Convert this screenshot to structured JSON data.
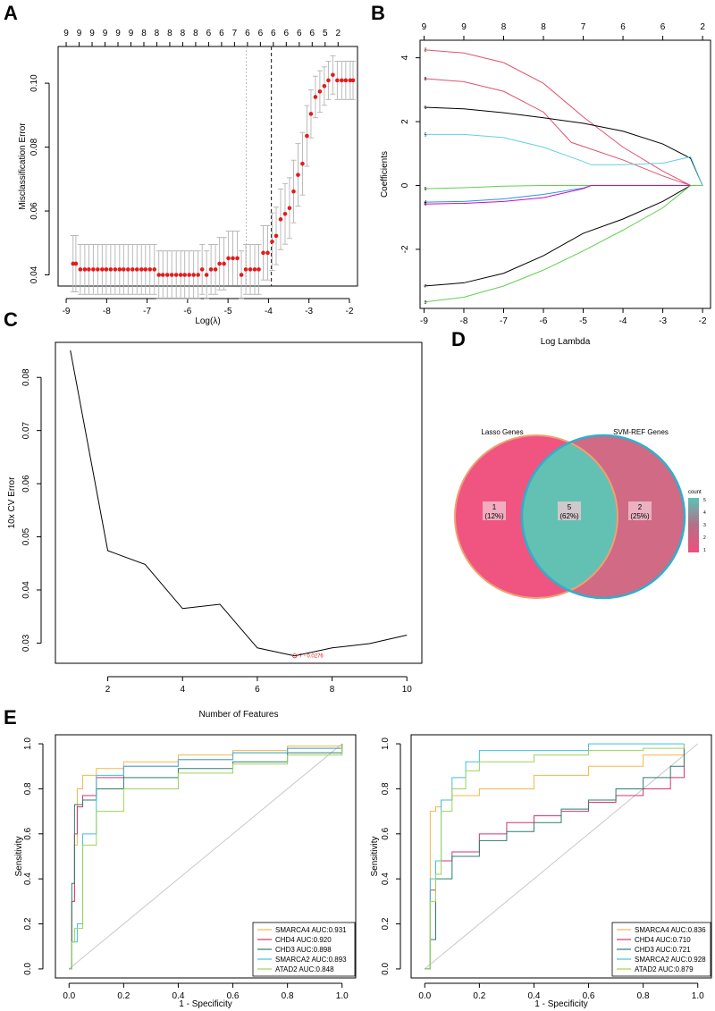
{
  "panels": {
    "a": "A",
    "b": "B",
    "c": "C",
    "d": "D",
    "e": "E"
  },
  "chart_data": [
    {
      "id": "A",
      "type": "scatter",
      "xlabel": "Log(λ)",
      "ylabel": "Misclassification Error",
      "xlim": [
        -9.2,
        -1.8
      ],
      "ylim": [
        0.0365,
        0.1115
      ],
      "xticks": [
        -9,
        -8,
        -7,
        -6,
        -5,
        -4,
        -3,
        -2
      ],
      "yticks": [
        0.04,
        0.06,
        0.08,
        0.1
      ],
      "top_ticks_x": [
        -9,
        -8.68,
        -8.36,
        -8.04,
        -7.72,
        -7.4,
        -7.08,
        -6.76,
        -6.44,
        -6.12,
        -5.8,
        -5.48,
        -5.16,
        -4.84,
        -4.52,
        -4.2,
        -3.88,
        -3.56,
        -3.24,
        -2.92,
        -2.6,
        -2.28
      ],
      "top_ticks": [
        "9",
        "9",
        "9",
        "9",
        "9",
        "9",
        "8",
        "8",
        "8",
        "8",
        "8",
        "6",
        "6",
        "7",
        "6",
        "6",
        "6",
        "6",
        "6",
        "6",
        "5",
        "2"
      ],
      "vlines": [
        -4.55,
        -3.93
      ],
      "x": [
        -8.83,
        -8.76,
        -8.65,
        -8.54,
        -8.44,
        -8.33,
        -8.22,
        -8.11,
        -8.01,
        -7.9,
        -7.79,
        -7.68,
        -7.58,
        -7.47,
        -7.36,
        -7.25,
        -7.14,
        -7.04,
        -6.93,
        -6.82,
        -6.71,
        -6.61,
        -6.5,
        -6.39,
        -6.28,
        -6.17,
        -6.07,
        -5.96,
        -5.85,
        -5.74,
        -5.64,
        -5.53,
        -5.42,
        -5.31,
        -5.21,
        -5.1,
        -4.99,
        -4.88,
        -4.77,
        -4.67,
        -4.56,
        -4.45,
        -4.34,
        -4.24,
        -4.13,
        -4.02,
        -3.91,
        -3.81,
        -3.7,
        -3.59,
        -3.48,
        -3.38,
        -3.27,
        -3.16,
        -3.05,
        -2.95,
        -2.84,
        -2.73,
        -2.62,
        -2.52,
        -2.41,
        -2.3,
        -2.19,
        -2.09,
        -1.98,
        -1.91
      ],
      "y": [
        0.0435,
        0.0435,
        0.0417,
        0.0417,
        0.0417,
        0.0417,
        0.0417,
        0.0417,
        0.0417,
        0.0417,
        0.0417,
        0.0417,
        0.0417,
        0.0417,
        0.0417,
        0.0417,
        0.0417,
        0.0417,
        0.0417,
        0.0417,
        0.04,
        0.04,
        0.04,
        0.04,
        0.04,
        0.04,
        0.04,
        0.04,
        0.04,
        0.04,
        0.0417,
        0.04,
        0.0417,
        0.0417,
        0.0435,
        0.0435,
        0.0452,
        0.0452,
        0.0452,
        0.04,
        0.0417,
        0.0417,
        0.0417,
        0.0417,
        0.0469,
        0.0469,
        0.0504,
        0.0522,
        0.0574,
        0.0591,
        0.0609,
        0.0661,
        0.0713,
        0.0748,
        0.0835,
        0.0904,
        0.0957,
        0.0974,
        0.0991,
        0.1009,
        0.1026,
        0.1009,
        0.1009,
        0.1009,
        0.1009,
        0.1009
      ],
      "err": [
        0.0088,
        0.0088,
        0.0078,
        0.0078,
        0.0078,
        0.0078,
        0.0078,
        0.0078,
        0.0078,
        0.0078,
        0.0078,
        0.0078,
        0.0078,
        0.0078,
        0.0078,
        0.0078,
        0.0078,
        0.0078,
        0.0078,
        0.0078,
        0.0075,
        0.0075,
        0.0075,
        0.0075,
        0.0075,
        0.0075,
        0.0075,
        0.0075,
        0.0075,
        0.0075,
        0.0078,
        0.0075,
        0.0078,
        0.0078,
        0.0082,
        0.0082,
        0.0085,
        0.0085,
        0.0085,
        0.0075,
        0.0078,
        0.0078,
        0.0078,
        0.0078,
        0.0085,
        0.0085,
        0.009,
        0.009,
        0.0095,
        0.0095,
        0.0095,
        0.0098,
        0.0098,
        0.0098,
        0.0095,
        0.0075,
        0.0065,
        0.0065,
        0.006,
        0.006,
        0.006,
        0.006,
        0.006,
        0.006,
        0.006,
        0.006
      ],
      "colors": {
        "point": "#e41a1c",
        "error_bar": "#b3b3b3"
      }
    },
    {
      "id": "B",
      "type": "line",
      "xlabel": "Log Lambda",
      "ylabel": "Coefficients",
      "xlim": [
        -9.1,
        -1.8
      ],
      "ylim": [
        -3.85,
        4.55
      ],
      "xticks": [
        -9,
        -8,
        -7,
        -6,
        -5,
        -4,
        -3,
        -2
      ],
      "yticks": [
        -2,
        0,
        2,
        4
      ],
      "top_ticks_x": [
        -9,
        -8,
        -7,
        -6,
        -5,
        -4,
        -3,
        -2
      ],
      "top_ticks": [
        "9",
        "9",
        "8",
        "8",
        "7",
        "6",
        "6",
        "2"
      ],
      "series": [
        {
          "label": "2",
          "color": "#df536b",
          "x": [
            -9,
            -8,
            -7,
            -6,
            -5,
            -4,
            -3,
            -2.3,
            -2.0
          ],
          "y": [
            4.25,
            4.15,
            3.85,
            3.2,
            2.15,
            1.2,
            0.45,
            0.0,
            0.0
          ]
        },
        {
          "label": "8",
          "color": "#df536b",
          "x": [
            -9,
            -8,
            -7,
            -6,
            -5.3,
            -4,
            -3,
            -2.3,
            -2.0
          ],
          "y": [
            3.35,
            3.25,
            2.95,
            2.3,
            1.35,
            0.8,
            0.3,
            0.0,
            0.0
          ]
        },
        {
          "label": "1",
          "color": "#000000",
          "x": [
            -9,
            -8,
            -7,
            -6,
            -5,
            -4,
            -3,
            -2.3,
            -2.0
          ],
          "y": [
            2.45,
            2.4,
            2.28,
            2.12,
            1.95,
            1.7,
            1.3,
            0.85,
            0.0
          ]
        },
        {
          "label": "5",
          "color": "#61d0e5",
          "x": [
            -9,
            -8,
            -7,
            -6,
            -5,
            -4.8,
            -4,
            -3,
            -2.3,
            -2.0
          ],
          "y": [
            1.6,
            1.6,
            1.5,
            1.2,
            0.75,
            0.65,
            0.65,
            0.7,
            0.9,
            0.0
          ]
        },
        {
          "label": "9",
          "color": "#61d04f",
          "x": [
            -9,
            -8,
            -7,
            -6,
            -5,
            -4,
            -3,
            -2.3,
            -2.0
          ],
          "y": [
            -0.1,
            -0.07,
            -0.02,
            0,
            0,
            0,
            0,
            0,
            0
          ]
        },
        {
          "label": "4",
          "color": "#2297e6",
          "x": [
            -9,
            -8,
            -7,
            -6,
            -5,
            -4.8,
            -4,
            -3,
            -2
          ],
          "y": [
            -0.52,
            -0.5,
            -0.42,
            -0.28,
            -0.08,
            0,
            0,
            0,
            0
          ]
        },
        {
          "label": "6",
          "color": "#cd0bbc",
          "x": [
            -9,
            -8,
            -7,
            -6,
            -5,
            -4.8,
            -4,
            -3,
            -2
          ],
          "y": [
            -0.58,
            -0.56,
            -0.5,
            -0.38,
            -0.1,
            0,
            0,
            0,
            0
          ]
        },
        {
          "label": "7",
          "color": "#000000",
          "x": [
            -9,
            -8,
            -7,
            -6,
            -5,
            -4,
            -3,
            -2.3,
            -2.0
          ],
          "y": [
            -3.15,
            -3.05,
            -2.75,
            -2.2,
            -1.5,
            -1.05,
            -0.5,
            0.0,
            0.0
          ]
        },
        {
          "label": "3",
          "color": "#61d04f",
          "x": [
            -9,
            -8,
            -7,
            -6,
            -5,
            -4,
            -3,
            -2.3,
            -2.0
          ],
          "y": [
            -3.65,
            -3.5,
            -3.15,
            -2.65,
            -2.05,
            -1.4,
            -0.7,
            0.0,
            0.0
          ]
        }
      ]
    },
    {
      "id": "C",
      "type": "line",
      "xlabel": "Number of Features",
      "ylabel": "10x CV Error",
      "xlim": [
        0.6,
        10.4
      ],
      "ylim": [
        0.0262,
        0.0866
      ],
      "xticks": [
        2,
        4,
        6,
        8,
        10
      ],
      "yticks": [
        0.03,
        0.04,
        0.05,
        0.06,
        0.07,
        0.08
      ],
      "x": [
        1,
        2,
        3,
        4,
        5,
        6,
        7,
        8,
        9,
        10
      ],
      "y": [
        0.0851,
        0.0474,
        0.0448,
        0.0365,
        0.0373,
        0.0291,
        0.0276,
        0.0291,
        0.0299,
        0.0315
      ],
      "min_label": "7 - 0.0276",
      "colors": {
        "line": "#000000",
        "min": "#e41a1c"
      }
    },
    {
      "id": "D",
      "type": "venn",
      "sets": [
        {
          "name": "Lasso Genes",
          "color": "#ef5580",
          "border": "#f0a070"
        },
        {
          "name": "SVM-REF Genes",
          "color": "#d06a85",
          "border": "#2eb0cc"
        }
      ],
      "regions": [
        {
          "count": "1",
          "percent": "(12%)"
        },
        {
          "count": "5",
          "percent": "(62%)"
        },
        {
          "count": "2",
          "percent": "(25%)"
        }
      ],
      "overlap_color": "#63c1b3",
      "legend_title": "count",
      "legend_ticks": [
        "5",
        "4",
        "3",
        "2",
        "1"
      ]
    },
    {
      "id": "E1",
      "type": "line",
      "xlabel": "1 - Specificity",
      "ylabel": "Sensitivity",
      "xlim": [
        -0.05,
        1.05
      ],
      "ylim": [
        -0.04,
        1.04
      ],
      "xticks": [
        0.0,
        0.2,
        0.4,
        0.6,
        0.8,
        1.0
      ],
      "yticks": [
        0.0,
        0.2,
        0.4,
        0.6,
        0.8,
        1.0
      ],
      "series": [
        {
          "name": "SMARCA4 AUC:0.931",
          "color": "#f2b84b",
          "x": [
            0,
            0.01,
            0.02,
            0.03,
            0.05,
            0.1,
            0.2,
            0.4,
            0.6,
            0.8,
            1
          ],
          "y": [
            0,
            0.3,
            0.55,
            0.8,
            0.86,
            0.89,
            0.92,
            0.95,
            0.97,
            0.99,
            1
          ]
        },
        {
          "name": "CHD4 AUC:0.920",
          "color": "#d6336c",
          "x": [
            0,
            0.01,
            0.02,
            0.03,
            0.05,
            0.1,
            0.2,
            0.4,
            0.6,
            0.8,
            1
          ],
          "y": [
            0,
            0.3,
            0.6,
            0.72,
            0.77,
            0.85,
            0.9,
            0.93,
            0.96,
            0.98,
            1
          ]
        },
        {
          "name": "CHD3 AUC:0.898",
          "color": "#2e7d6e",
          "x": [
            0,
            0.01,
            0.02,
            0.05,
            0.1,
            0.2,
            0.4,
            0.6,
            0.8,
            1
          ],
          "y": [
            0,
            0.38,
            0.73,
            0.75,
            0.8,
            0.85,
            0.89,
            0.92,
            0.96,
            1
          ]
        },
        {
          "name": "SMARCA2 AUC:0.893",
          "color": "#3ec0e0",
          "x": [
            0,
            0.01,
            0.03,
            0.05,
            0.1,
            0.2,
            0.4,
            0.6,
            0.8,
            1
          ],
          "y": [
            0,
            0.12,
            0.2,
            0.6,
            0.86,
            0.9,
            0.93,
            0.96,
            0.98,
            1
          ]
        },
        {
          "name": "ATAD2 AUC:0.848",
          "color": "#9cd35a",
          "x": [
            0,
            0.01,
            0.02,
            0.05,
            0.1,
            0.2,
            0.4,
            0.6,
            0.8,
            1
          ],
          "y": [
            0,
            0.12,
            0.18,
            0.55,
            0.7,
            0.8,
            0.87,
            0.91,
            0.95,
            1
          ]
        }
      ]
    },
    {
      "id": "E2",
      "type": "line",
      "xlabel": "1 - Specificity",
      "ylabel": "Sensitivity",
      "xlim": [
        -0.05,
        1.05
      ],
      "ylim": [
        -0.04,
        1.04
      ],
      "xticks": [
        0.0,
        0.2,
        0.4,
        0.6,
        0.8,
        1.0
      ],
      "yticks": [
        0.0,
        0.2,
        0.4,
        0.6,
        0.8,
        1.0
      ],
      "series": [
        {
          "name": "SMARCA4 AUC:0.836",
          "color": "#f2b84b",
          "x": [
            0,
            0.02,
            0.04,
            0.06,
            0.1,
            0.2,
            0.4,
            0.6,
            0.8,
            0.95,
            0.95
          ],
          "y": [
            0,
            0.7,
            0.72,
            0.75,
            0.77,
            0.8,
            0.86,
            0.9,
            0.95,
            0.95,
            1
          ]
        },
        {
          "name": "CHD4 AUC:0.710",
          "color": "#d6336c",
          "x": [
            0,
            0.02,
            0.04,
            0.1,
            0.2,
            0.3,
            0.4,
            0.5,
            0.6,
            0.7,
            0.8,
            0.9,
            0.95,
            0.95
          ],
          "y": [
            0,
            0.35,
            0.48,
            0.52,
            0.6,
            0.65,
            0.68,
            0.7,
            0.74,
            0.77,
            0.8,
            0.85,
            0.9,
            1
          ]
        },
        {
          "name": "CHD3 AUC:0.721",
          "color": "#2e7d6e",
          "x": [
            0,
            0.02,
            0.04,
            0.1,
            0.2,
            0.3,
            0.4,
            0.5,
            0.6,
            0.7,
            0.8,
            0.9,
            0.95,
            0.95
          ],
          "y": [
            0,
            0.13,
            0.4,
            0.5,
            0.57,
            0.61,
            0.65,
            0.71,
            0.75,
            0.8,
            0.85,
            0.9,
            0.95,
            1
          ]
        },
        {
          "name": "SMARCA2 AUC:0.928",
          "color": "#3ec0e0",
          "x": [
            0,
            0.02,
            0.04,
            0.06,
            0.1,
            0.15,
            0.2,
            0.4,
            0.6,
            0.8,
            0.95
          ],
          "y": [
            0,
            0.4,
            0.48,
            0.75,
            0.85,
            0.92,
            0.97,
            0.97,
            1,
            1,
            1
          ]
        },
        {
          "name": "ATAD2 AUC:0.879",
          "color": "#9cd35a",
          "x": [
            0,
            0.02,
            0.04,
            0.06,
            0.1,
            0.15,
            0.2,
            0.4,
            0.6,
            0.8,
            0.95
          ],
          "y": [
            0,
            0.3,
            0.42,
            0.7,
            0.8,
            0.88,
            0.92,
            0.95,
            0.97,
            0.98,
            1
          ]
        }
      ]
    }
  ]
}
